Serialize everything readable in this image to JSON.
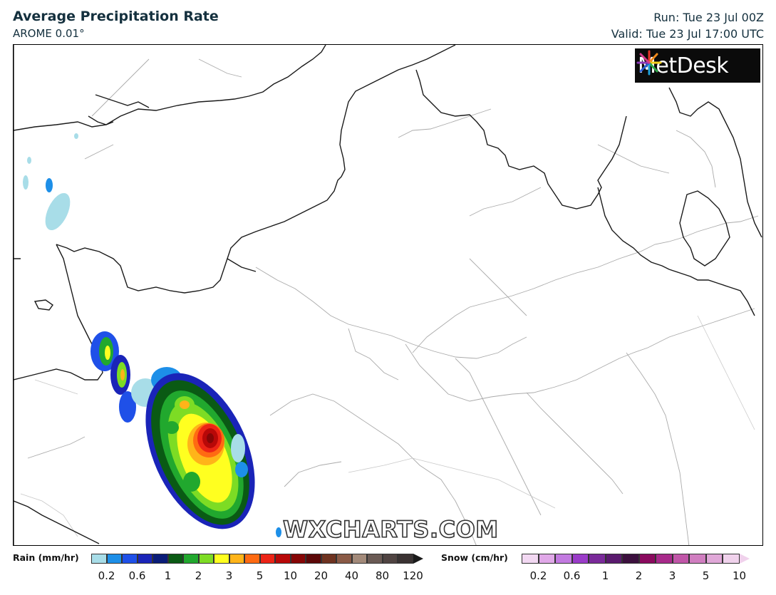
{
  "header": {
    "title": "Average Precipitation Rate",
    "model": "AROME 0.01°",
    "run": "Run: Tue 23 Jul 00Z",
    "valid": "Valid: Tue 23 Jul 17:00 UTC"
  },
  "logo": {
    "text": "MetDesk"
  },
  "watermark": "WXCHARTS.COM",
  "legend": {
    "rain": {
      "label": "Rain (mm/hr)",
      "colors": [
        "#a8dde8",
        "#1d8fe8",
        "#1f50e8",
        "#1a24b8",
        "#0a1c78",
        "#0a5a14",
        "#21a82e",
        "#7ddc24",
        "#ffff20",
        "#ffb419",
        "#ff6a12",
        "#ec2416",
        "#b80808",
        "#860606",
        "#5c0808",
        "#6e3220",
        "#8a5a46",
        "#a38a7a",
        "#6a5a54",
        "#504442",
        "#3a3232"
      ],
      "ticks": [
        "0.2",
        "0.6",
        "1",
        "2",
        "3",
        "5",
        "10",
        "20",
        "40",
        "80",
        "120"
      ]
    },
    "snow": {
      "label": "Snow (cm/hr)",
      "colors": [
        "#f2d8f2",
        "#e0a8e8",
        "#c27ae0",
        "#9a3cc8",
        "#7a2a9a",
        "#5a1a6e",
        "#3c103e",
        "#8a0a5e",
        "#a82a8a",
        "#c056a8",
        "#d07ec0",
        "#e0a8d8",
        "#f0d2ec"
      ],
      "ticks": [
        "0.2",
        "0.6",
        "1",
        "2",
        "3",
        "5",
        "10"
      ]
    }
  }
}
